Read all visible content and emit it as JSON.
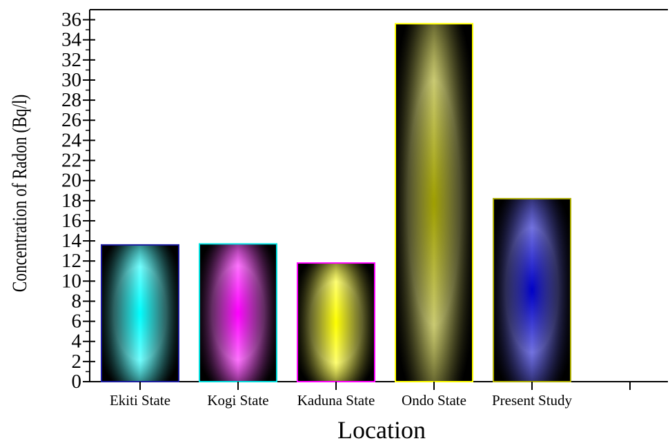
{
  "chart_data": {
    "type": "bar",
    "categories": [
      "Ekiti State",
      "Kogi State",
      "Kaduna State",
      "Ondo State",
      "Present Study",
      ""
    ],
    "values": [
      13.6,
      13.7,
      11.8,
      35.6,
      18.2,
      null
    ],
    "xlabel": "Location",
    "ylabel": "Concentration of Radon (Bq/l)",
    "ylim": [
      0,
      37
    ],
    "yticks": [
      0,
      2,
      4,
      6,
      8,
      10,
      12,
      14,
      16,
      18,
      20,
      22,
      24,
      26,
      28,
      30,
      32,
      34,
      36
    ],
    "grid": false,
    "bar_colors": [
      "#00ffff",
      "#ff00ff",
      "#ffff00",
      "#a0a000",
      "#0000c8"
    ],
    "bar_edge_colors": [
      "#1a1aa0",
      "#00e0e0",
      "#ff00ff",
      "#ffff00",
      "#b0b000"
    ]
  }
}
